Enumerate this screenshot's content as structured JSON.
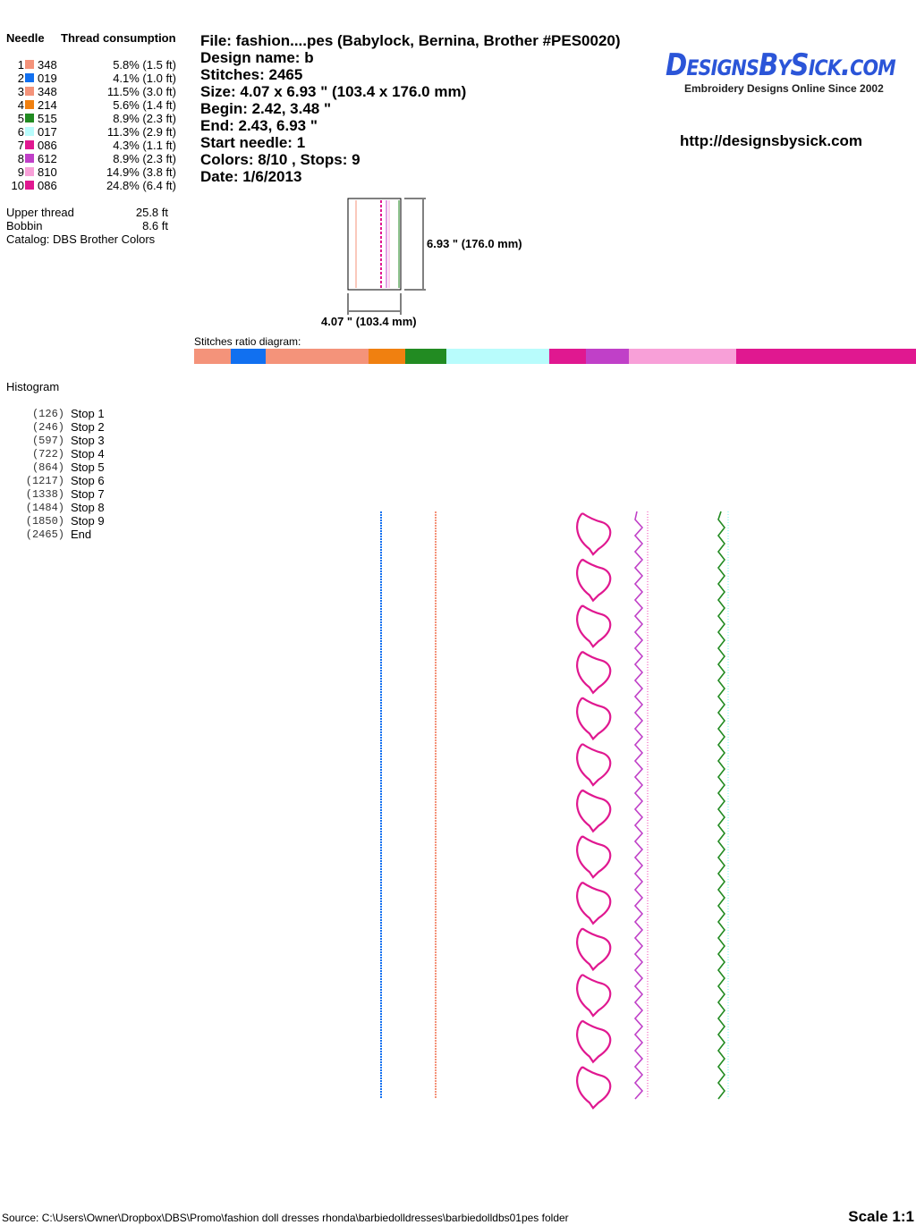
{
  "needle_table": {
    "headers": [
      "Needle",
      "Thread consumption"
    ],
    "rows": [
      {
        "number": "1",
        "color": "#f4937a",
        "code": "348",
        "consumption": "5.8% (1.5 ft)"
      },
      {
        "number": "2",
        "color": "#1170f0",
        "code": "019",
        "consumption": "4.1% (1.0 ft)"
      },
      {
        "number": "3",
        "color": "#f4937a",
        "code": "348",
        "consumption": "11.5% (3.0 ft)"
      },
      {
        "number": "4",
        "color": "#f08010",
        "code": "214",
        "consumption": "5.6% (1.4 ft)"
      },
      {
        "number": "5",
        "color": "#228b22",
        "code": "515",
        "consumption": "8.9% (2.3 ft)"
      },
      {
        "number": "6",
        "color": "#b8fcfc",
        "code": "017",
        "consumption": "11.3% (2.9 ft)"
      },
      {
        "number": "7",
        "color": "#e01890",
        "code": "086",
        "consumption": "4.3% (1.1 ft)"
      },
      {
        "number": "8",
        "color": "#c040c8",
        "code": "612",
        "consumption": "8.9% (2.3 ft)"
      },
      {
        "number": "9",
        "color": "#f8a0d8",
        "code": "810",
        "consumption": "14.9% (3.8 ft)"
      },
      {
        "number": "10",
        "color": "#e01890",
        "code": "086",
        "consumption": "24.8% (6.4 ft)"
      }
    ]
  },
  "thread_totals": [
    {
      "label": "Upper thread",
      "value": "25.8 ft"
    },
    {
      "label": "Bobbin",
      "value": "8.6 ft"
    }
  ],
  "catalog": "Catalog: DBS Brother Colors",
  "info": [
    "File: fashion....pes  (Babylock, Bernina, Brother #PES0020)",
    "Design name: b",
    "Stitches: 2465",
    "Size: 4.07 x 6.93 \" (103.4 x 176.0 mm)",
    "Begin: 2.42, 3.48 \"",
    "End: 2.43, 6.93 \"",
    "Start needle: 1",
    "Colors: 8/10 , Stops: 9",
    "Date: 1/6/2013"
  ],
  "logo": {
    "name": "DesignsBySick.com",
    "tagline": "Embroidery Designs Online Since 2002"
  },
  "url": "http://designsbysick.com",
  "dimensions": {
    "height": "6.93 \" (176.0 mm)",
    "width": "4.07 \" (103.4 mm)"
  },
  "ratio_label": "Stitches ratio diagram:",
  "histogram": {
    "title": "Histogram",
    "stops": [
      {
        "count": "(126)",
        "label": "Stop 1"
      },
      {
        "count": "(246)",
        "label": "Stop 2"
      },
      {
        "count": "(597)",
        "label": "Stop 3"
      },
      {
        "count": "(722)",
        "label": "Stop 4"
      },
      {
        "count": "(864)",
        "label": "Stop 5"
      },
      {
        "count": "(1217)",
        "label": "Stop 6"
      },
      {
        "count": "(1338)",
        "label": "Stop 7"
      },
      {
        "count": "(1484)",
        "label": "Stop 8"
      },
      {
        "count": "(1850)",
        "label": "Stop 9"
      },
      {
        "count": "(2465)",
        "label": "End"
      }
    ]
  },
  "footer": {
    "source": "Source: C:\\Users\\Owner\\Dropbox\\DBS\\Promo\\fashion doll dresses  rhonda\\barbiedolldresses\\barbiedolldbs01pes folder",
    "scale": "Scale 1:1"
  }
}
